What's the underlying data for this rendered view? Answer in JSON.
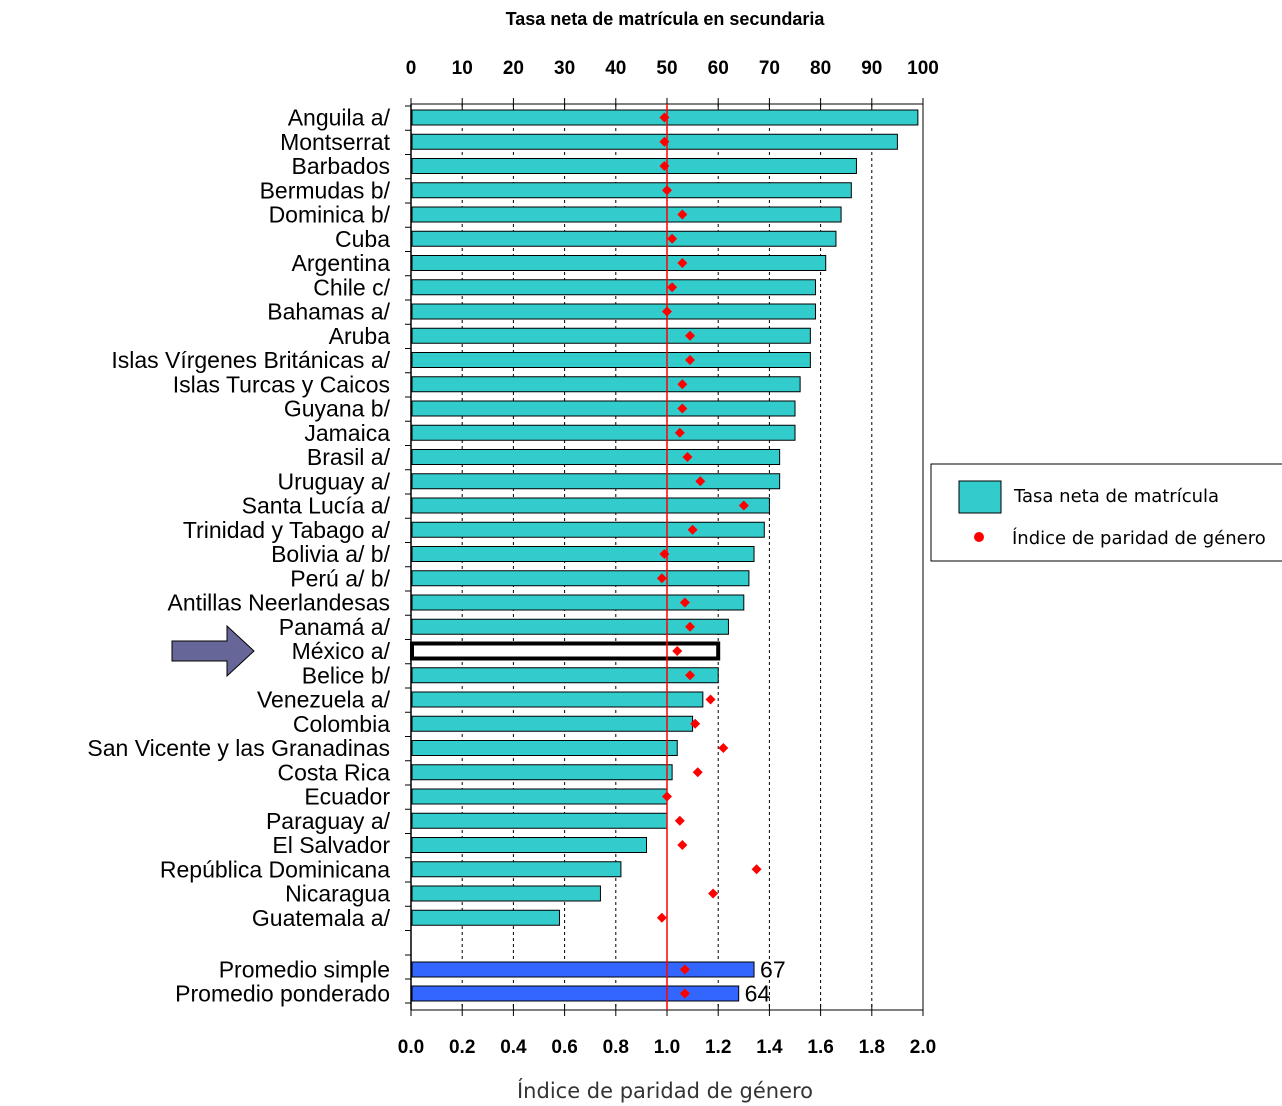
{
  "chart_data": {
    "type": "bar",
    "orientation": "horizontal",
    "title": "Tasa neta de matrícula en secundaria",
    "xlabel": "Índice de paridad de género",
    "top_axis": {
      "ticks": [
        "0",
        "10",
        "20",
        "30",
        "40",
        "50",
        "60",
        "70",
        "80",
        "90",
        "100"
      ],
      "range": [
        0,
        100
      ]
    },
    "bottom_axis": {
      "ticks": [
        "0.0",
        "0.2",
        "0.4",
        "0.6",
        "0.8",
        "1.0",
        "1.2",
        "1.4",
        "1.6",
        "1.8",
        "2.0"
      ],
      "range": [
        0.0,
        2.0
      ]
    },
    "categories": [
      "Anguila a/",
      "Montserrat",
      "Barbados",
      "Bermudas b/",
      "Dominica b/",
      "Cuba",
      "Argentina",
      "Chile c/",
      "Bahamas a/",
      "Aruba",
      "Islas Vírgenes Británicas a/",
      "Islas Turcas y Caicos",
      "Guyana b/",
      "Jamaica",
      "Brasil a/",
      "Uruguay a/",
      "Santa Lucía a/",
      "Trinidad y Tabago a/",
      "Bolivia a/ b/",
      "Perú a/ b/",
      "Antillas Neerlandesas",
      "Panamá a/",
      "México a/",
      "Belice b/",
      "Venezuela a/",
      "Colombia",
      "San Vicente y las Granadinas",
      "Costa Rica",
      "Ecuador",
      "Paraguay a/",
      "El Salvador",
      "República Dominicana",
      "Nicaragua",
      "Guatemala a/"
    ],
    "series": [
      {
        "name": "Tasa neta de matrícula",
        "values": [
          99,
          95,
          87,
          86,
          84,
          83,
          81,
          79,
          79,
          78,
          78,
          76,
          75,
          75,
          72,
          72,
          70,
          69,
          67,
          66,
          65,
          62,
          60,
          60,
          57,
          55,
          52,
          51,
          50,
          50,
          46,
          41,
          37,
          29
        ]
      },
      {
        "name": "Índice de paridad de género",
        "values": [
          0.99,
          0.99,
          0.99,
          1.0,
          1.06,
          1.02,
          1.06,
          1.02,
          1.0,
          1.09,
          1.09,
          1.06,
          1.06,
          1.05,
          1.08,
          1.13,
          1.3,
          1.1,
          0.99,
          0.98,
          1.07,
          1.09,
          1.04,
          1.09,
          1.17,
          1.11,
          1.22,
          1.12,
          1.0,
          1.05,
          1.06,
          1.35,
          1.18,
          0.98
        ]
      }
    ],
    "averages": {
      "categories": [
        "Promedio simple",
        "Promedio ponderado"
      ],
      "values": [
        67,
        64
      ],
      "value_labels": [
        "67",
        "64"
      ],
      "parity": [
        1.07,
        1.07
      ]
    },
    "reference_line": 1.0,
    "highlight": "México a/",
    "colors": {
      "bar": "#33cccc",
      "average_bar": "#3366ff",
      "marker": "#ff0000",
      "reference": "#ff0000",
      "arrow": "#666699"
    },
    "legend": {
      "placement": "right",
      "entries": [
        "Tasa neta de matrícula",
        "Índice de paridad de género"
      ]
    },
    "grid": "dashed vertical"
  }
}
